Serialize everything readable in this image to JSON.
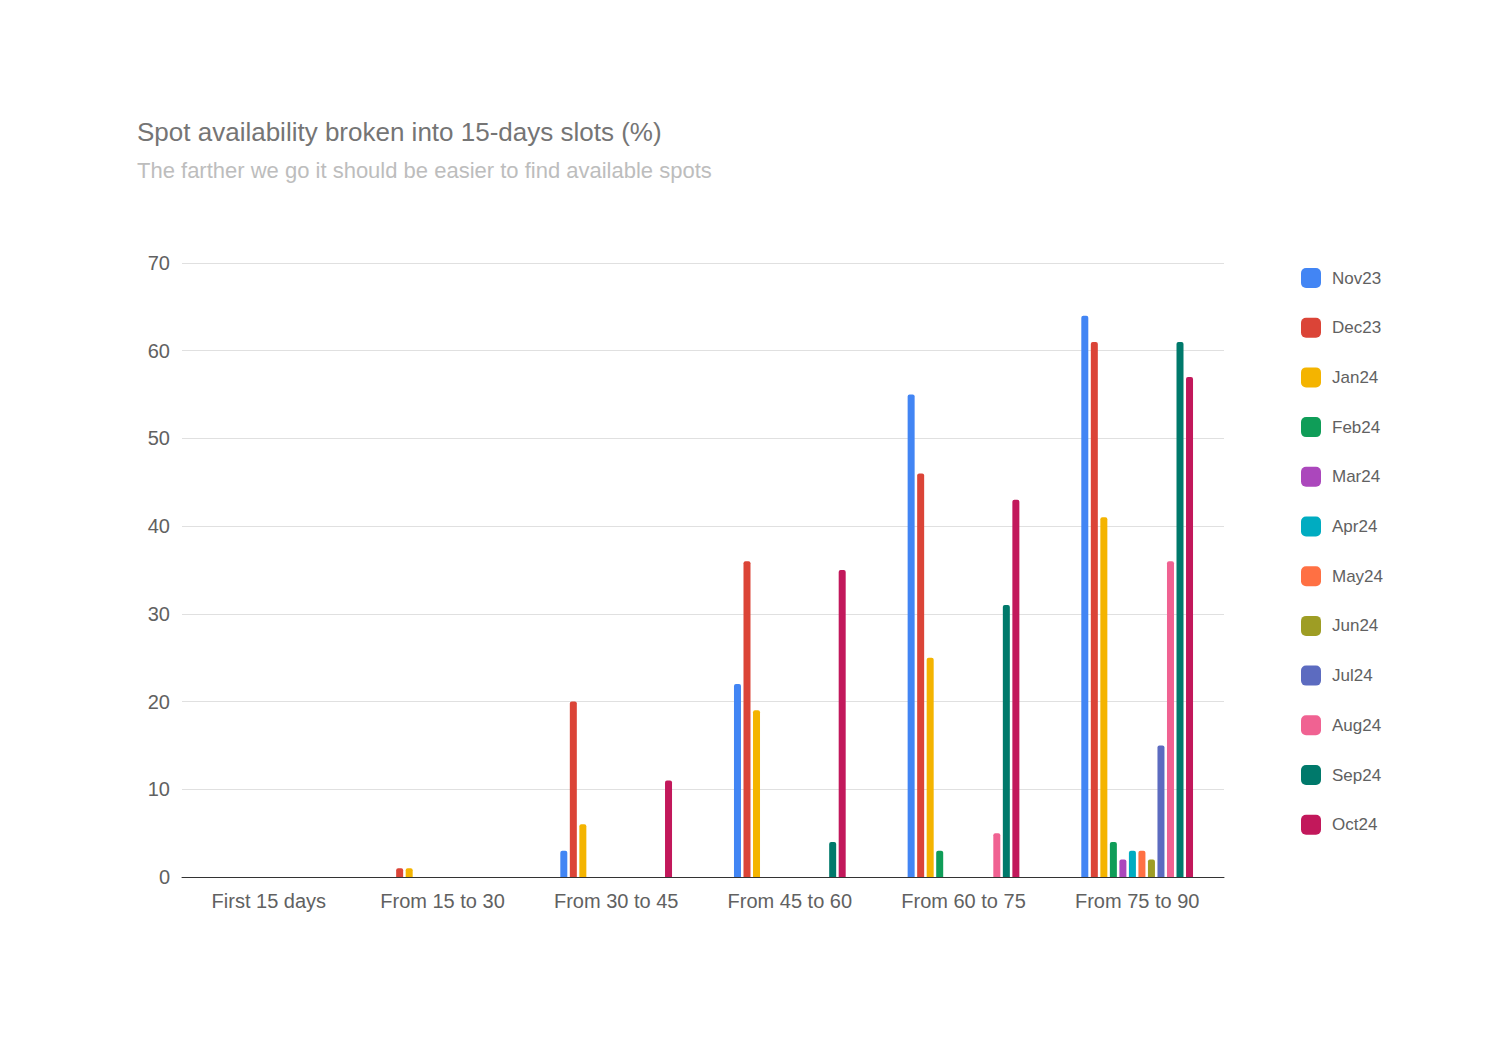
{
  "chart_data": {
    "type": "bar",
    "title": "Spot availability broken into 15-days slots (%)",
    "subtitle": "The farther we go it should be easier to find available spots",
    "categories": [
      "First 15 days",
      "From 15 to 30",
      "From 30 to 45",
      "From 45 to 60",
      "From 60 to 75",
      "From 75 to 90"
    ],
    "series": [
      {
        "name": "Nov23",
        "color": "#4285f4",
        "values": [
          0,
          0,
          3,
          22,
          55,
          64
        ]
      },
      {
        "name": "Dec23",
        "color": "#db4437",
        "values": [
          0,
          1,
          20,
          36,
          46,
          61
        ]
      },
      {
        "name": "Jan24",
        "color": "#f4b400",
        "values": [
          0,
          1,
          6,
          19,
          25,
          41
        ]
      },
      {
        "name": "Feb24",
        "color": "#0f9d58",
        "values": [
          0,
          0,
          0,
          0,
          3,
          4
        ]
      },
      {
        "name": "Mar24",
        "color": "#ab47bc",
        "values": [
          0,
          0,
          0,
          0,
          0,
          2
        ]
      },
      {
        "name": "Apr24",
        "color": "#00acc1",
        "values": [
          0,
          0,
          0,
          0,
          0,
          3
        ]
      },
      {
        "name": "May24",
        "color": "#ff7043",
        "values": [
          0,
          0,
          0,
          0,
          0,
          3
        ]
      },
      {
        "name": "Jun24",
        "color": "#9e9d24",
        "values": [
          0,
          0,
          0,
          0,
          0,
          2
        ]
      },
      {
        "name": "Jul24",
        "color": "#5c6bc0",
        "values": [
          0,
          0,
          0,
          0,
          0,
          15
        ]
      },
      {
        "name": "Aug24",
        "color": "#f06292",
        "values": [
          0,
          0,
          0,
          0,
          5,
          36
        ]
      },
      {
        "name": "Sep24",
        "color": "#00796b",
        "values": [
          0,
          0,
          0,
          4,
          31,
          61
        ]
      },
      {
        "name": "Oct24",
        "color": "#c2185b",
        "values": [
          0,
          0,
          11,
          35,
          43,
          57
        ]
      }
    ],
    "ylim": [
      0,
      70
    ],
    "yticks": [
      0,
      10,
      20,
      30,
      40,
      50,
      60,
      70
    ],
    "grid": true,
    "legend": "right"
  }
}
